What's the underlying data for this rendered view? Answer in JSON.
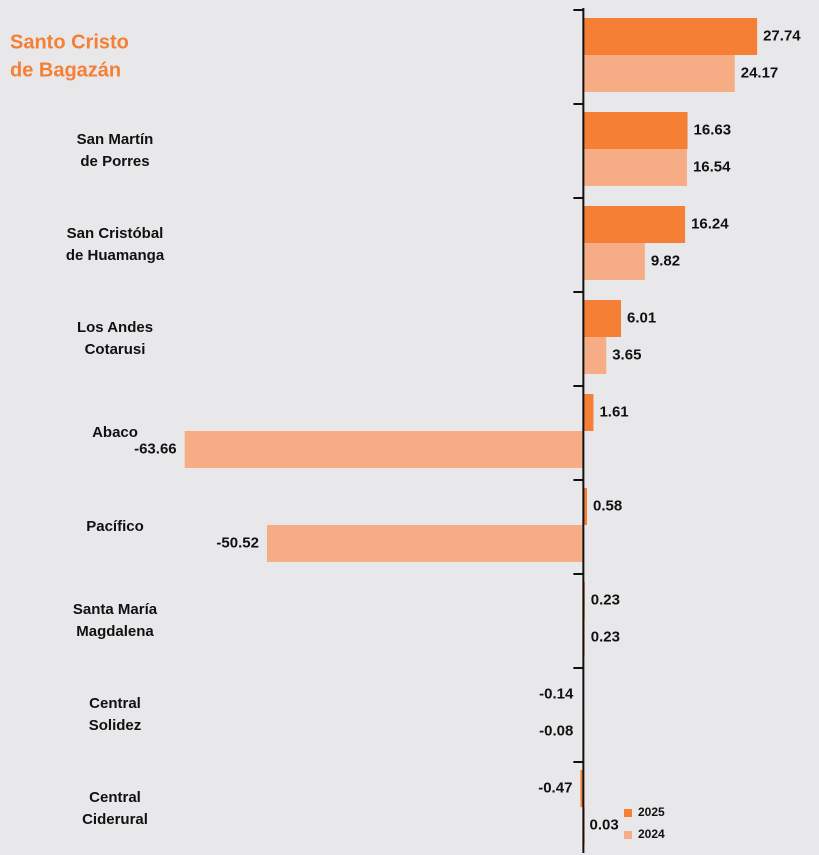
{
  "chart_data": {
    "type": "bar",
    "orientation": "horizontal",
    "categories": [
      [
        "Santo Cristo",
        "de Bagazán"
      ],
      [
        "San Martín",
        "de Porres"
      ],
      [
        "San Cristóbal",
        "de Huamanga"
      ],
      [
        "Los Andes",
        "Cotarusi"
      ],
      [
        "Abaco"
      ],
      [
        "Pacífico"
      ],
      [
        "Santa María",
        "Magdalena"
      ],
      [
        "Central",
        "Solidez"
      ],
      [
        "Central",
        "Ciderural"
      ]
    ],
    "series": [
      {
        "name": "2025",
        "color": "#f47f35",
        "values": [
          27.74,
          16.63,
          16.24,
          6.01,
          1.61,
          0.58,
          0.23,
          -0.14,
          -0.47
        ]
      },
      {
        "name": "2024",
        "color": "#f6ad85",
        "values": [
          24.17,
          16.54,
          9.82,
          3.65,
          -63.66,
          -50.52,
          0.23,
          -0.08,
          0.03
        ]
      }
    ],
    "xlim": [
      -66,
      29
    ],
    "negative_label_color": "#e8343c",
    "legend": "bottom-right"
  }
}
